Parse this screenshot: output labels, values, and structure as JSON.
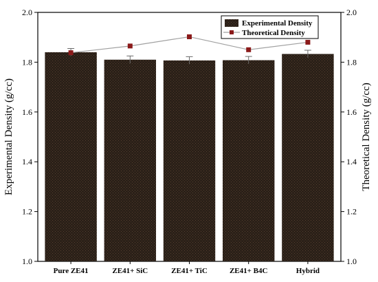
{
  "chart_data": {
    "type": "bar",
    "categories": [
      "Pure ZE41",
      "ZE41+ SiC",
      "ZE41+ TiC",
      "ZE41+ B4C",
      "Hybrid"
    ],
    "series": [
      {
        "name": "Experimental Density",
        "kind": "bar",
        "values": [
          1.84,
          1.81,
          1.807,
          1.808,
          1.833
        ],
        "errors": [
          0.015,
          0.015,
          0.015,
          0.015,
          0.015
        ],
        "color": "#2a2018"
      },
      {
        "name": "Theoretical Density",
        "kind": "line-marker",
        "values": [
          1.838,
          1.865,
          1.902,
          1.85,
          1.88
        ],
        "color": "#8b1a1a",
        "line_color": "#a0a0a0"
      }
    ],
    "ylabel": "Experimental Density (g/cc)",
    "ylabel_right": "Theoretical Density (g/cc)",
    "ylim": [
      1.0,
      2.0
    ],
    "yticks": [
      "1.0",
      "1.2",
      "1.4",
      "1.6",
      "1.8",
      "2.0"
    ],
    "legend_position": "top-right",
    "grid": false
  }
}
